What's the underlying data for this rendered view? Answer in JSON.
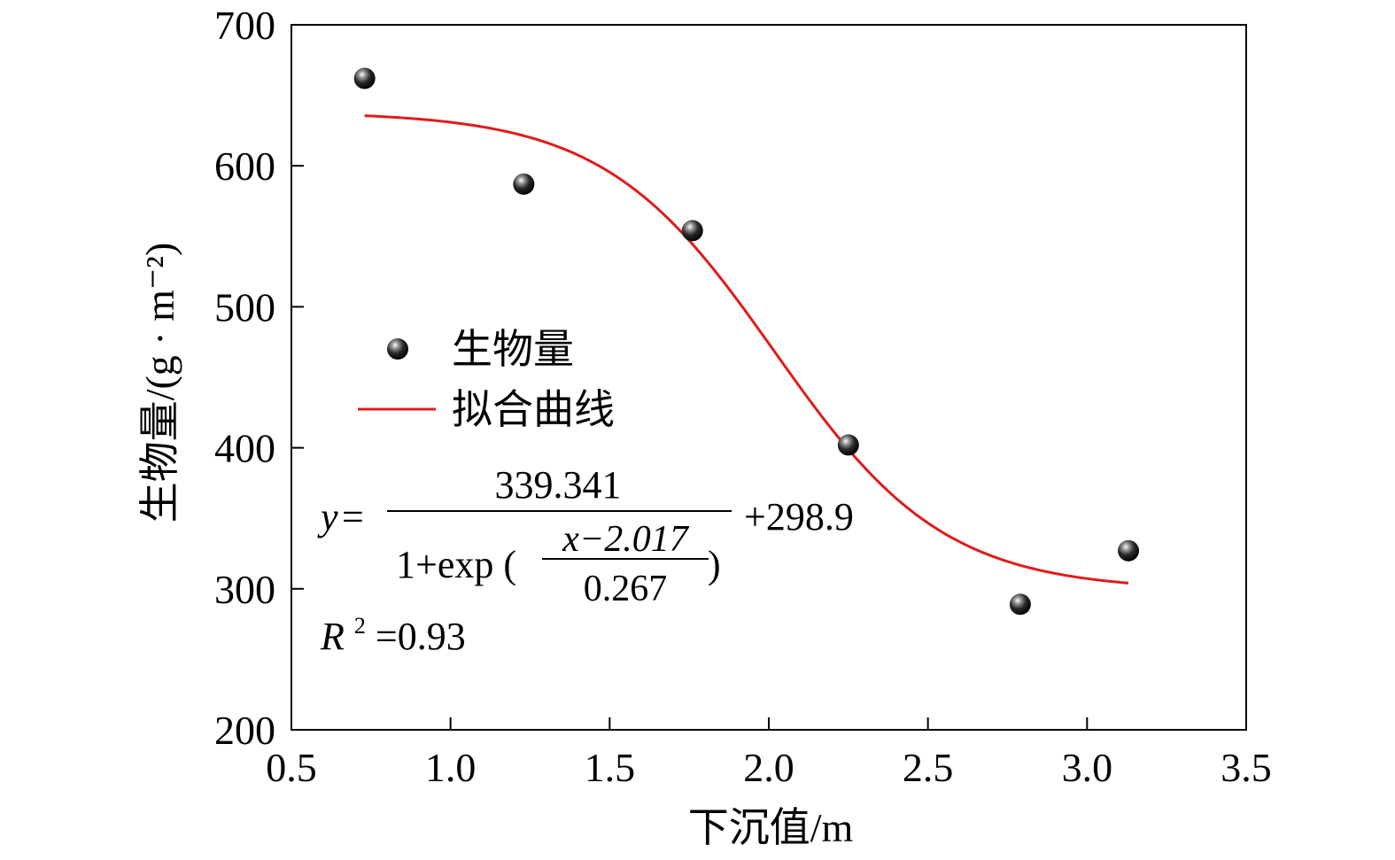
{
  "chart_data": {
    "type": "scatter",
    "xlabel": "下沉值/m",
    "ylabel": "生物量/(g · m⁻²)",
    "xlim": [
      0.5,
      3.5
    ],
    "ylim": [
      200,
      700
    ],
    "xticks": [
      "0.5",
      "1.0",
      "1.5",
      "2.0",
      "2.5",
      "3.0",
      "3.5"
    ],
    "yticks": [
      "200",
      "300",
      "400",
      "500",
      "600",
      "700"
    ],
    "grid": false,
    "legend_position": "middle-left",
    "series": [
      {
        "name": "生物量",
        "kind": "points",
        "color": "#111111",
        "x": [
          0.73,
          1.23,
          1.76,
          2.25,
          2.79,
          3.13
        ],
        "y": [
          662,
          587,
          554,
          402,
          289,
          327
        ]
      },
      {
        "name": "拟合曲线",
        "kind": "line",
        "color": "#e01b1b",
        "fit": {
          "model": "logistic",
          "A": 339.341,
          "x0": 2.017,
          "s": 0.267,
          "C": 298.9,
          "x_range": [
            0.73,
            3.13
          ]
        }
      }
    ],
    "annotation": {
      "y_label": "y",
      "eq_sign": "=",
      "numerator": "339.341",
      "denominator_prefix": "1+exp (",
      "inner_numerator": "x−2.017",
      "inner_denominator": "0.267",
      "denominator_suffix": ")",
      "offset": "+298.9",
      "r2_symbol": "R",
      "r2_sup": "2",
      "r2_value": "=0.93"
    }
  }
}
